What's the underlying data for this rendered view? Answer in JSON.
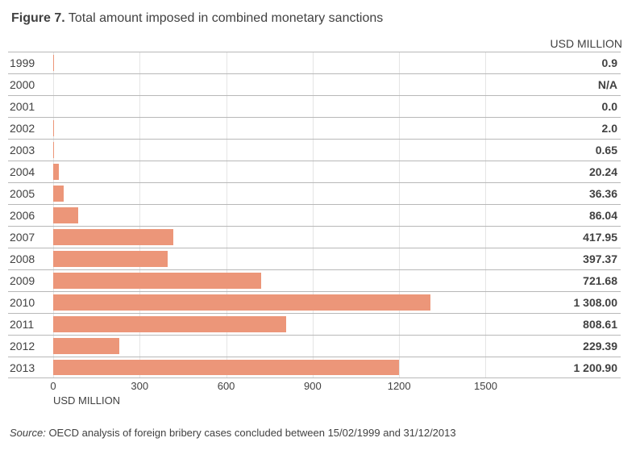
{
  "title": {
    "prefix": "Figure 7.",
    "text": "Total amount imposed in combined monetary sanctions"
  },
  "units_header": "USD MILLION",
  "chart": {
    "type": "bar",
    "orientation": "horizontal",
    "bar_color": "#ec9679",
    "gridline_color": "#e5e5e5",
    "row_border_color": "#b8b8b8",
    "background_color": "#ffffff",
    "label_fontsize": 14,
    "value_fontsize": 14,
    "value_fontweight": "bold",
    "x_axis": {
      "min": 0,
      "max": 1700,
      "ticks": [
        0,
        300,
        600,
        900,
        1200,
        1500
      ],
      "title": "USD MILLION",
      "fontsize": 13
    },
    "rows": [
      {
        "year": "1999",
        "value": 0.9,
        "value_label": "0.9"
      },
      {
        "year": "2000",
        "value": null,
        "value_label": "N/A"
      },
      {
        "year": "2001",
        "value": 0.0,
        "value_label": "0.0"
      },
      {
        "year": "2002",
        "value": 2.0,
        "value_label": "2.0"
      },
      {
        "year": "2003",
        "value": 0.65,
        "value_label": "0.65"
      },
      {
        "year": "2004",
        "value": 20.24,
        "value_label": "20.24"
      },
      {
        "year": "2005",
        "value": 36.36,
        "value_label": "36.36"
      },
      {
        "year": "2006",
        "value": 86.04,
        "value_label": "86.04"
      },
      {
        "year": "2007",
        "value": 417.95,
        "value_label": "417.95"
      },
      {
        "year": "2008",
        "value": 397.37,
        "value_label": "397.37"
      },
      {
        "year": "2009",
        "value": 721.68,
        "value_label": "721.68"
      },
      {
        "year": "2010",
        "value": 1308.0,
        "value_label": "1 308.00"
      },
      {
        "year": "2011",
        "value": 808.61,
        "value_label": "808.61"
      },
      {
        "year": "2012",
        "value": 229.39,
        "value_label": "229.39"
      },
      {
        "year": "2013",
        "value": 1200.9,
        "value_label": "1 200.90"
      }
    ]
  },
  "source": {
    "prefix": "Source:",
    "text": "OECD analysis of foreign bribery cases concluded between 15/02/1999 and 31/12/2013"
  }
}
